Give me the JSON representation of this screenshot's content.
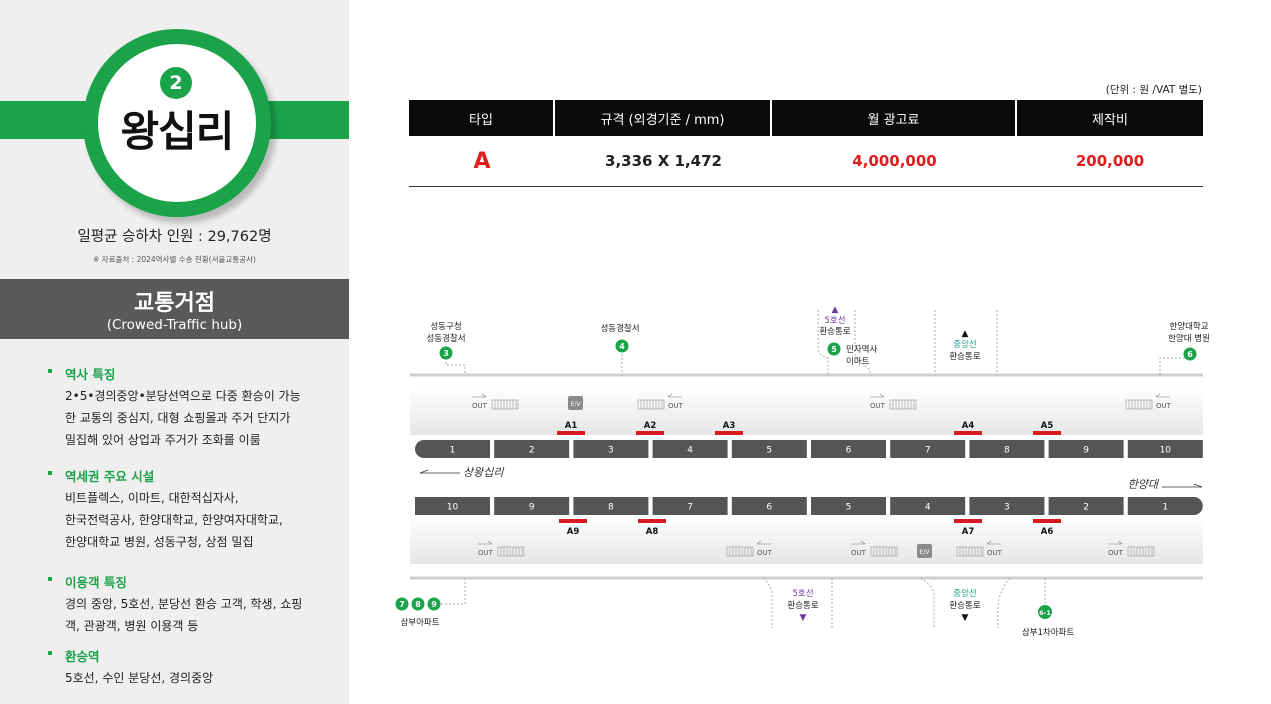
{
  "station": {
    "line_number": "2",
    "name": "왕십리",
    "ridership": "일평균 승하차 인원 : 29,762명",
    "source": "※ 자료출처 : 2024역사별 수송 현황(서울교통공사)"
  },
  "hub": {
    "title": "교통거점",
    "subtitle": "(Crowed-Traffic hub)"
  },
  "sections": [
    {
      "title": "역사 특징",
      "lines": [
        "2•5•경의중앙•분당선역으로 다중 환승이 가능",
        "한 교통의 중심지, 대형 쇼핑몰과 주거 단지가",
        "밀집해 있어 상업과 주거가 조화를 이룸"
      ]
    },
    {
      "title": "역세권 주요 시설",
      "lines": [
        "비트플렉스, 이마트, 대한적십자사,",
        "한국전력공사, 한양대학교, 한양여자대학교,",
        "한양대학교 병원, 성동구청, 상점 밀집"
      ]
    },
    {
      "title": "이용객 특징",
      "lines": [
        "경의 중앙, 5호선, 분당선 환승 고객, 학생, 쇼핑",
        "객, 관광객, 병원 이용객 등"
      ]
    },
    {
      "title": "환승역",
      "lines": [
        "5호선, 수인 분당선, 경의중앙"
      ]
    }
  ],
  "pricing": {
    "unit_note": "(단위 : 원 /VAT 별도)",
    "headers": [
      "타입",
      "규격 (외경기준 / mm)",
      "월 광고료",
      "제작비"
    ],
    "row": {
      "type": "A",
      "size": "3,336 X 1,472",
      "monthly_fee": "4,000,000",
      "production_fee": "200,000"
    }
  },
  "map": {
    "colors": {
      "green": "#1ba34a",
      "red": "#d71920",
      "car": "#555555",
      "purple": "#6b3fa0",
      "teal": "#1fa38a"
    },
    "top_exits": [
      {
        "label": "성동구청\n성동경찰서",
        "num": "3"
      },
      {
        "label": "성동경찰서",
        "num": "4"
      },
      {
        "label": "민자역사\n이마트",
        "num": "5"
      },
      {
        "label": "한양대학교\n한양대 병원",
        "num": "6"
      }
    ],
    "bottom_exits": [
      {
        "label": "삼부아파트",
        "nums": [
          "7",
          "8",
          "9"
        ]
      },
      {
        "label": "삼부1차아파트",
        "num": "6-1"
      }
    ],
    "transfers": {
      "line5_top": "5호선",
      "transfer_label": "환승통로",
      "central_top": "중앙선",
      "line5_bottom": "5호선",
      "central_bottom": "중앙선"
    },
    "out_label": "OUT",
    "ev_label": "E/V",
    "direction_left": "상왕십리",
    "direction_right": "한양대",
    "top_cars": [
      "1",
      "2",
      "3",
      "4",
      "5",
      "6",
      "7",
      "8",
      "9",
      "10"
    ],
    "bottom_cars": [
      "10",
      "9",
      "8",
      "7",
      "6",
      "5",
      "4",
      "3",
      "2",
      "1"
    ],
    "top_ads": [
      "A1",
      "A2",
      "A3",
      "A4",
      "A5"
    ],
    "bottom_ads": [
      "A9",
      "A8",
      "A7",
      "A6"
    ]
  }
}
